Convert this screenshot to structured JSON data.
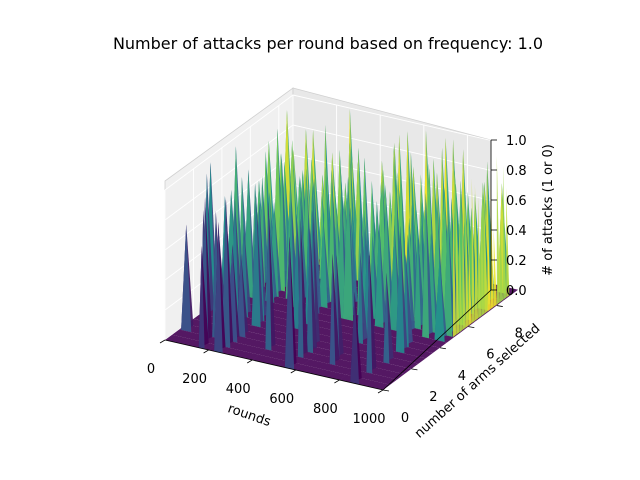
{
  "chart_data": {
    "type": "surface3d",
    "title": "Number of attacks per round based on frequency: 1.0",
    "xlabel": "rounds",
    "ylabel": "number of arms selected",
    "zlabel": "# of attacks (1 or 0)",
    "xlim": [
      0,
      1000
    ],
    "ylim": [
      0,
      9
    ],
    "zlim": [
      0,
      1
    ],
    "x_ticks": [
      "0",
      "200",
      "400",
      "600",
      "800",
      "1000"
    ],
    "y_ticks": [
      "0",
      "2",
      "4",
      "6",
      "8"
    ],
    "z_ticks": [
      "0.0",
      "0.2",
      "0.4",
      "0.6",
      "0.8",
      "1.0"
    ],
    "colormap": "viridis",
    "colormap_stops": [
      "#440154",
      "#3b528b",
      "#21908d",
      "#5dc963",
      "#fde725"
    ],
    "grid": true,
    "description_values": {
      "z_range": [
        0,
        1
      ],
      "spike_rounds_low_arms": [
        20,
        130,
        160,
        250,
        420,
        560,
        700,
        880
      ],
      "spike_rounds_high_arms": [
        0,
        100,
        180,
        250,
        300,
        400,
        500,
        560,
        620,
        700,
        760,
        820,
        900,
        960
      ]
    }
  }
}
